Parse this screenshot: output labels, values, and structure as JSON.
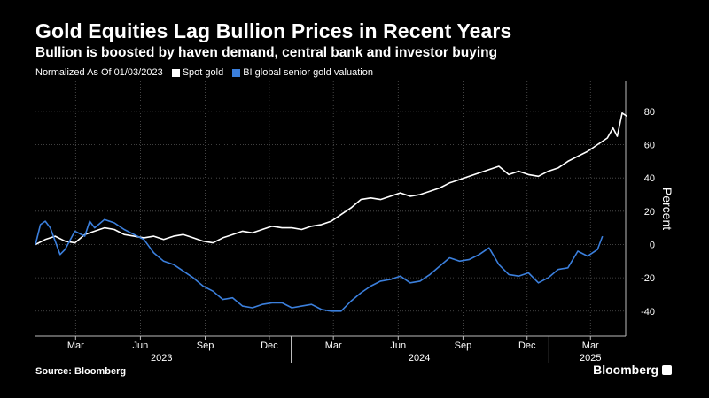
{
  "header": {
    "title": "Gold Equities Lag Bullion Prices in Recent Years",
    "subtitle": "Bullion is boosted by haven demand, central bank and investor buying",
    "note": "Normalized As Of 01/03/2023"
  },
  "footer": {
    "source": "Source: Bloomberg",
    "brand": "Bloomberg"
  },
  "chart_data": {
    "type": "line",
    "title": "Gold Equities Lag Bullion Prices in Recent Years",
    "subtitle": "Bullion is boosted by haven demand, central bank and investor buying",
    "ylabel": "Percent",
    "ylim": [
      -55,
      98
    ],
    "xlim": [
      "2023-01-03",
      "2025-04-20"
    ],
    "yticks": [
      -40,
      -20,
      0,
      20,
      40,
      60,
      80
    ],
    "ytick_labels": [
      "-40",
      "-20",
      "0",
      "20",
      "40",
      "60",
      "80"
    ],
    "xticks": [
      {
        "label": "Mar",
        "date": "2023-03-01"
      },
      {
        "label": "Jun",
        "date": "2023-06-01"
      },
      {
        "label": "Sep",
        "date": "2023-09-01"
      },
      {
        "label": "Dec",
        "date": "2023-12-01"
      },
      {
        "label": "Mar",
        "date": "2024-03-01"
      },
      {
        "label": "Jun",
        "date": "2024-06-01"
      },
      {
        "label": "Sep",
        "date": "2024-09-01"
      },
      {
        "label": "Dec",
        "date": "2024-12-01"
      },
      {
        "label": "Mar",
        "date": "2025-03-01"
      }
    ],
    "year_labels": [
      {
        "label": "2023",
        "date": "2023-07-01"
      },
      {
        "label": "2024",
        "date": "2024-07-01"
      },
      {
        "label": "2025",
        "date": "2025-03-01"
      }
    ],
    "year_boundaries": [
      "2024-01-01",
      "2025-01-01"
    ],
    "grid": true,
    "legend": "top-left",
    "series": [
      {
        "name": "Spot gold",
        "color": "#ffffff",
        "x": [
          "2023-01-03",
          "2023-01-17",
          "2023-01-31",
          "2023-02-14",
          "2023-02-28",
          "2023-03-14",
          "2023-03-28",
          "2023-04-11",
          "2023-04-25",
          "2023-05-09",
          "2023-05-23",
          "2023-06-06",
          "2023-06-20",
          "2023-07-04",
          "2023-07-18",
          "2023-08-01",
          "2023-08-15",
          "2023-08-29",
          "2023-09-12",
          "2023-09-26",
          "2023-10-10",
          "2023-10-24",
          "2023-11-07",
          "2023-11-21",
          "2023-12-05",
          "2023-12-19",
          "2024-01-02",
          "2024-01-16",
          "2024-01-30",
          "2024-02-13",
          "2024-02-27",
          "2024-03-12",
          "2024-03-26",
          "2024-04-09",
          "2024-04-23",
          "2024-05-07",
          "2024-05-21",
          "2024-06-04",
          "2024-06-18",
          "2024-07-02",
          "2024-07-16",
          "2024-07-30",
          "2024-08-13",
          "2024-08-27",
          "2024-09-10",
          "2024-09-24",
          "2024-10-08",
          "2024-10-22",
          "2024-11-05",
          "2024-11-19",
          "2024-12-03",
          "2024-12-17",
          "2024-12-31",
          "2025-01-14",
          "2025-01-28",
          "2025-02-11",
          "2025-02-25",
          "2025-03-11",
          "2025-03-25",
          "2025-04-02",
          "2025-04-08",
          "2025-04-15",
          "2025-04-22"
        ],
        "values": [
          0,
          3,
          5,
          2,
          1,
          6,
          8,
          10,
          9,
          6,
          5,
          4,
          5,
          3,
          5,
          6,
          4,
          2,
          1,
          4,
          6,
          8,
          7,
          9,
          11,
          10,
          10,
          9,
          11,
          12,
          14,
          18,
          22,
          27,
          28,
          27,
          29,
          31,
          29,
          30,
          32,
          34,
          37,
          39,
          41,
          43,
          45,
          47,
          42,
          44,
          42,
          41,
          44,
          46,
          50,
          53,
          56,
          60,
          64,
          70,
          65,
          79,
          77
        ]
      },
      {
        "name": "BI global senior gold valuation",
        "color": "#3b7fdc",
        "x": [
          "2023-01-03",
          "2023-01-10",
          "2023-01-17",
          "2023-01-24",
          "2023-01-31",
          "2023-02-07",
          "2023-02-14",
          "2023-02-28",
          "2023-03-14",
          "2023-03-21",
          "2023-03-28",
          "2023-04-11",
          "2023-04-25",
          "2023-05-09",
          "2023-05-23",
          "2023-06-06",
          "2023-06-20",
          "2023-07-04",
          "2023-07-18",
          "2023-08-01",
          "2023-08-15",
          "2023-08-29",
          "2023-09-12",
          "2023-09-26",
          "2023-10-10",
          "2023-10-24",
          "2023-11-07",
          "2023-11-21",
          "2023-12-05",
          "2023-12-19",
          "2024-01-02",
          "2024-01-16",
          "2024-01-30",
          "2024-02-13",
          "2024-02-27",
          "2024-03-12",
          "2024-03-26",
          "2024-04-09",
          "2024-04-23",
          "2024-05-07",
          "2024-05-21",
          "2024-06-04",
          "2024-06-18",
          "2024-07-02",
          "2024-07-16",
          "2024-07-30",
          "2024-08-13",
          "2024-08-27",
          "2024-09-10",
          "2024-09-24",
          "2024-10-08",
          "2024-10-22",
          "2024-11-05",
          "2024-11-19",
          "2024-12-03",
          "2024-12-17",
          "2024-12-31",
          "2025-01-14",
          "2025-01-28",
          "2025-02-11",
          "2025-02-25",
          "2025-03-11",
          "2025-03-18"
        ],
        "values": [
          0,
          12,
          14,
          10,
          2,
          -6,
          -3,
          8,
          5,
          14,
          10,
          15,
          13,
          9,
          6,
          3,
          -5,
          -10,
          -12,
          -16,
          -20,
          -25,
          -28,
          -33,
          -32,
          -37,
          -38,
          -36,
          -35,
          -35,
          -38,
          -37,
          -36,
          -39,
          -40,
          -40,
          -34,
          -29,
          -25,
          -22,
          -21,
          -19,
          -23,
          -22,
          -18,
          -13,
          -8,
          -10,
          -9,
          -6,
          -2,
          -12,
          -18,
          -19,
          -17,
          -23,
          -20,
          -15,
          -14,
          -4,
          -7,
          -3,
          5
        ]
      }
    ]
  }
}
